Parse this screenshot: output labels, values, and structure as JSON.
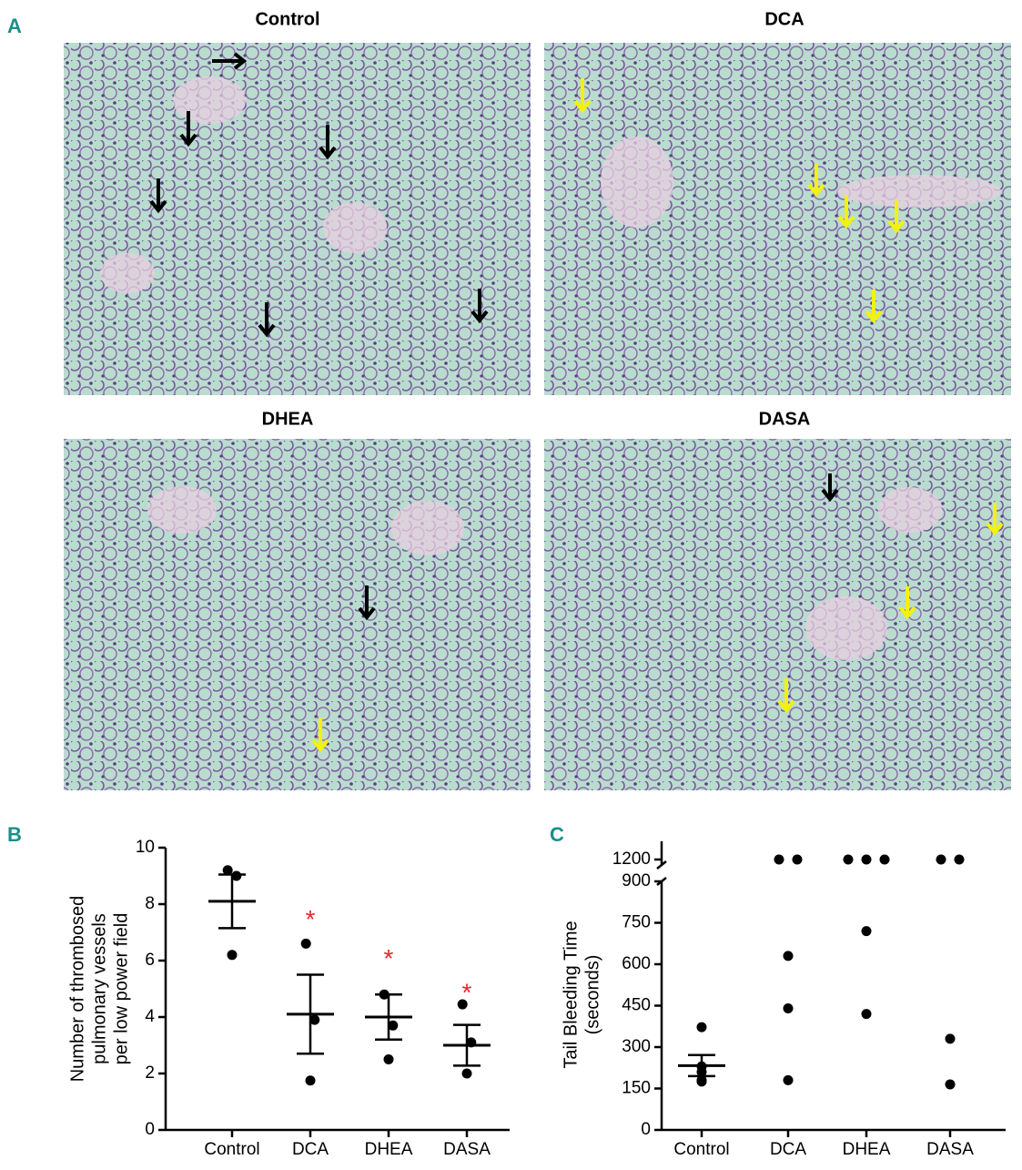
{
  "panel_labels": [
    "A",
    "B",
    "C"
  ],
  "micrographs": [
    "Control",
    "DCA",
    "DHEA",
    "DASA"
  ],
  "chart_data": [
    {
      "type": "dot",
      "categories": [
        "Control",
        "DCA",
        "DHEA",
        "DASA"
      ],
      "y_label": [
        "Number of thrombosed",
        "pulmonary vessels",
        "per low power field"
      ],
      "points": [
        [
          9.2,
          9.0,
          6.2
        ],
        [
          6.6,
          3.9,
          1.75
        ],
        [
          4.8,
          3.7,
          2.5
        ],
        [
          4.45,
          3.1,
          2.0
        ]
      ],
      "means": [
        8.1,
        4.1,
        4.0,
        3.0
      ],
      "sem": [
        0.95,
        1.4,
        0.8,
        0.72
      ],
      "annotations": [
        {
          "label": "*",
          "x": "DCA",
          "y": 7.6,
          "color": "#e8262a"
        },
        {
          "label": "*",
          "x": "DHEA",
          "y": 6.2,
          "color": "#e8262a"
        },
        {
          "label": "*",
          "x": "DASA",
          "y": 5.0,
          "color": "#e8262a"
        }
      ],
      "ylim": [
        0,
        10
      ],
      "yticks": [
        0,
        2,
        4,
        6,
        8,
        10
      ],
      "color": "#000000"
    },
    {
      "type": "dot",
      "categories": [
        "Control",
        "DCA",
        "DHEA",
        "DASA"
      ],
      "y_label": [
        "Tail Bleeding Time",
        "(seconds)"
      ],
      "points": [
        [
          372,
          230,
          210,
          180,
          175
        ],
        [
          1200,
          1200,
          630,
          440,
          180
        ],
        [
          1200,
          1200,
          1200,
          720,
          420
        ],
        [
          1200,
          1200,
          330,
          165
        ]
      ],
      "means": [
        233,
        null,
        null,
        null
      ],
      "sem": [
        38,
        null,
        null,
        null
      ],
      "ylim": [
        0,
        1200
      ],
      "y_break": [
        900,
        1200
      ],
      "yticks": [
        0,
        150,
        300,
        450,
        600,
        750,
        900,
        1200
      ],
      "color": "#000000"
    }
  ]
}
